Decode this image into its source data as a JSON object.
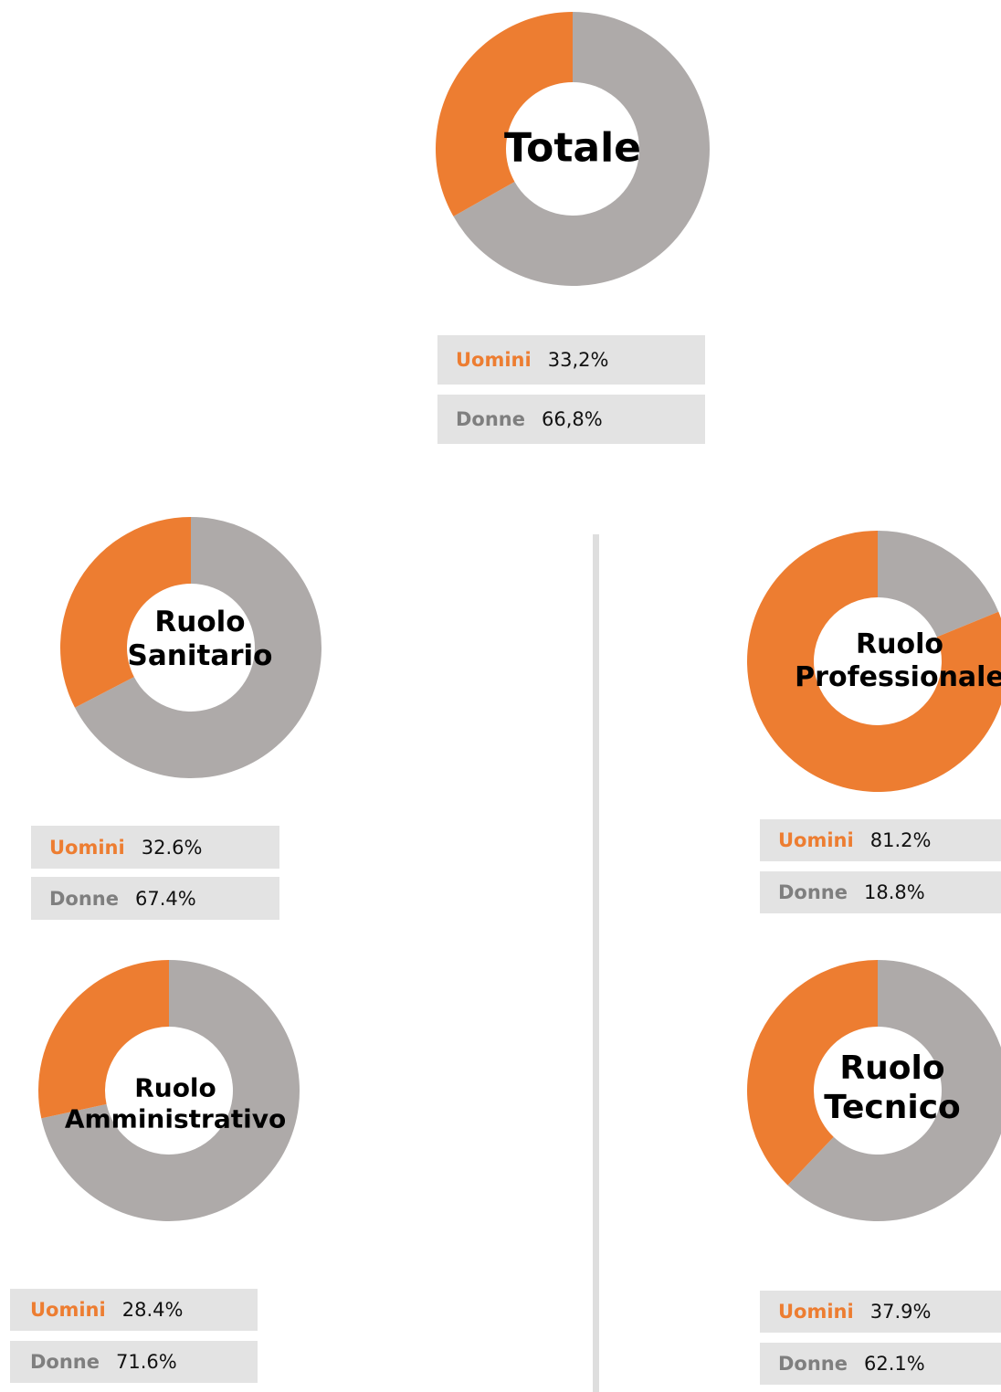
{
  "chart_data": [
    {
      "type": "pie",
      "title": "Totale",
      "categories": [
        "Uomini",
        "Donne"
      ],
      "values": [
        33.2,
        66.8
      ],
      "value_labels": [
        "33,2%",
        "66,8%"
      ],
      "colors": [
        "#ed7d31",
        "#aeaaa9"
      ]
    },
    {
      "type": "pie",
      "title": "Ruolo Sanitario",
      "categories": [
        "Uomini",
        "Donne"
      ],
      "values": [
        32.6,
        67.4
      ],
      "value_labels": [
        "32.6%",
        "67.4%"
      ],
      "colors": [
        "#ed7d31",
        "#aeaaa9"
      ]
    },
    {
      "type": "pie",
      "title": "Ruolo Professionale",
      "categories": [
        "Uomini",
        "Donne"
      ],
      "values": [
        81.2,
        18.8
      ],
      "value_labels": [
        "81.2%",
        "18.8%"
      ],
      "colors": [
        "#ed7d31",
        "#aeaaa9"
      ]
    },
    {
      "type": "pie",
      "title": "Ruolo Amministrativo",
      "categories": [
        "Uomini",
        "Donne"
      ],
      "values": [
        28.4,
        71.6
      ],
      "value_labels": [
        "28.4%",
        "71.6%"
      ],
      "colors": [
        "#ed7d31",
        "#aeaaa9"
      ]
    },
    {
      "type": "pie",
      "title": "Ruolo Tecnico",
      "categories": [
        "Uomini",
        "Donne"
      ],
      "values": [
        37.9,
        62.1
      ],
      "value_labels": [
        "37.9%",
        "62.1%"
      ],
      "colors": [
        "#ed7d31",
        "#aeaaa9"
      ]
    }
  ]
}
